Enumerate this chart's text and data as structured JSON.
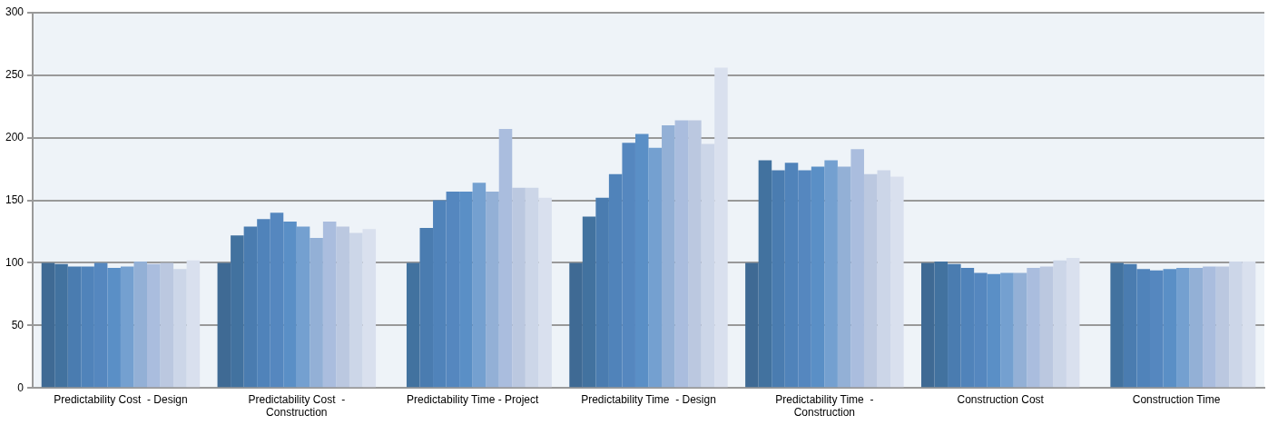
{
  "chart_data": {
    "type": "bar",
    "categories": [
      "Predictability Cost  - Design",
      "Predictability Cost  - Construction",
      "Predictability Time - Project",
      "Predictability Time  - Design",
      "Predictability Time  - Construction",
      "Construction Cost",
      "Construction Time"
    ],
    "series": [
      {
        "color": "#3f6a94",
        "values": [
          100,
          100,
          null,
          100,
          100,
          100,
          null
        ]
      },
      {
        "color": "#42729f",
        "values": [
          99,
          122,
          100,
          137,
          182,
          101,
          100
        ]
      },
      {
        "color": "#4a7cb0",
        "values": [
          97,
          129,
          128,
          152,
          174,
          99,
          99
        ]
      },
      {
        "color": "#5083ba",
        "values": [
          97,
          135,
          150,
          171,
          180,
          96,
          95
        ]
      },
      {
        "color": "#5587bf",
        "values": [
          100,
          140,
          157,
          196,
          174,
          92,
          94
        ]
      },
      {
        "color": "#5a8fc6",
        "values": [
          96,
          133,
          157,
          203,
          177,
          91,
          95
        ]
      },
      {
        "color": "#74a0d0",
        "values": [
          97,
          129,
          164,
          192,
          182,
          92,
          96
        ]
      },
      {
        "color": "#93b0d6",
        "values": [
          101,
          120,
          157,
          210,
          177,
          92,
          96
        ]
      },
      {
        "color": "#aabdde",
        "values": [
          99,
          133,
          207,
          214,
          191,
          96,
          97
        ]
      },
      {
        "color": "#bbc8e0",
        "values": [
          100,
          129,
          160,
          214,
          171,
          97,
          97
        ]
      },
      {
        "color": "#ccd6e8",
        "values": [
          95,
          124,
          160,
          195,
          174,
          102,
          101
        ]
      },
      {
        "color": "#d9e0ee",
        "values": [
          102,
          127,
          152,
          256,
          169,
          104,
          101
        ]
      }
    ],
    "ylim": [
      0,
      300
    ],
    "yticks": [
      0,
      50,
      100,
      150,
      200,
      250,
      300
    ],
    "grid": "y",
    "legend": false
  }
}
